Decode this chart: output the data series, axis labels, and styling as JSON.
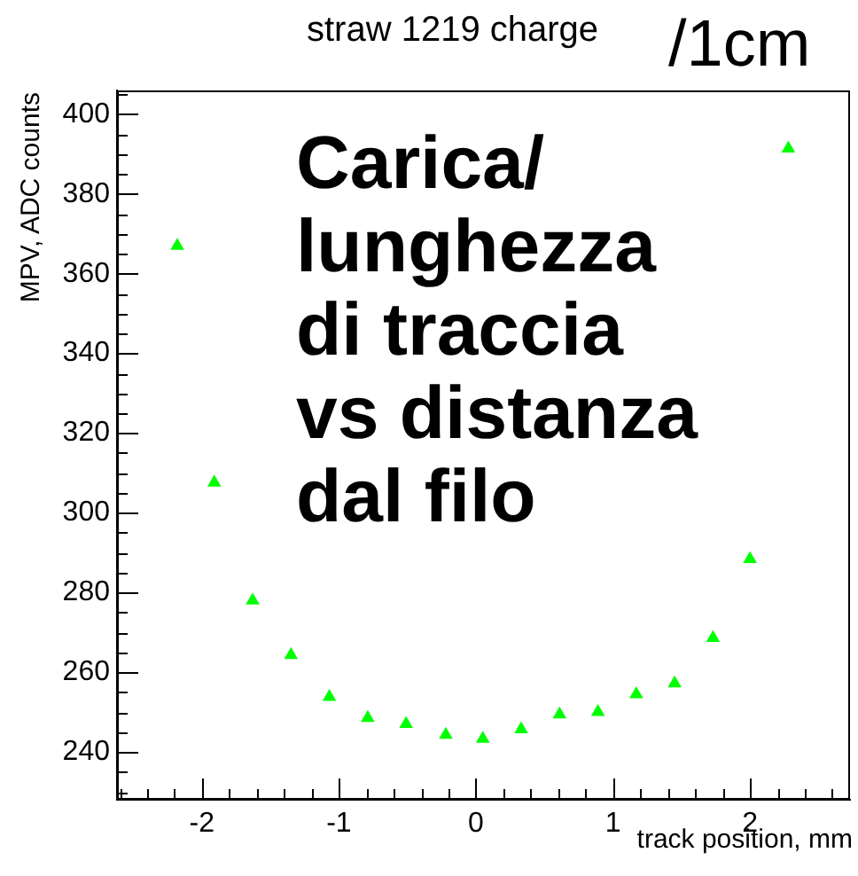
{
  "chart_data": {
    "type": "scatter",
    "title": "straw 1219 charge",
    "subtitle": "/1cm",
    "xlabel": "track position, mm",
    "ylabel": "MPV, ADC counts",
    "annotations": [
      "Carica/\nlunghezza\ndi traccia\nvs distanza\ndal filo"
    ],
    "x": [
      -2.18,
      -1.91,
      -1.63,
      -1.35,
      -1.07,
      -0.79,
      -0.51,
      -0.22,
      0.05,
      0.33,
      0.61,
      0.89,
      1.17,
      1.45,
      1.73,
      2.0,
      2.28
    ],
    "values": [
      367,
      307.6,
      278,
      264.3,
      253.8,
      248.5,
      247,
      244.3,
      243.3,
      245.7,
      249.4,
      250,
      254.5,
      257.2,
      268.6,
      288.4,
      391.4
    ],
    "color": "#00ff00",
    "marker": "triangle",
    "xlim": [
      -2.62,
      2.73
    ],
    "xticks": [
      {
        "value": -2.6,
        "label": null
      },
      {
        "value": -2.4,
        "label": null
      },
      {
        "value": -2.2,
        "label": null
      },
      -2,
      {
        "value": -1.8,
        "label": null
      },
      {
        "value": -1.6,
        "label": null
      },
      {
        "value": -1.4,
        "label": null
      },
      {
        "value": -1.2,
        "label": null
      },
      -1,
      {
        "value": -0.8,
        "label": null
      },
      {
        "value": -0.6,
        "label": null
      },
      {
        "value": -0.4,
        "label": null
      },
      {
        "value": -0.2,
        "label": null
      },
      0,
      {
        "value": 0.2,
        "label": null
      },
      {
        "value": 0.4,
        "label": null
      },
      {
        "value": 0.6,
        "label": null
      },
      {
        "value": 0.8,
        "label": null
      },
      1,
      {
        "value": 1.2,
        "label": null
      },
      {
        "value": 1.4,
        "label": null
      },
      {
        "value": 1.6,
        "label": null
      },
      {
        "value": 1.8,
        "label": null
      },
      2,
      {
        "value": 2.2,
        "label": null
      },
      {
        "value": 2.4,
        "label": null
      },
      {
        "value": 2.6,
        "label": null
      }
    ],
    "ylim": [
      228,
      406
    ],
    "yticks": [
      {
        "value": 230,
        "label": null
      },
      {
        "value": 235,
        "label": null
      },
      240,
      {
        "value": 245,
        "label": null
      },
      {
        "value": 250,
        "label": null
      },
      {
        "value": 255,
        "label": null
      },
      260,
      {
        "value": 265,
        "label": null
      },
      {
        "value": 270,
        "label": null
      },
      {
        "value": 275,
        "label": null
      },
      280,
      {
        "value": 285,
        "label": null
      },
      {
        "value": 290,
        "label": null
      },
      {
        "value": 295,
        "label": null
      },
      300,
      {
        "value": 305,
        "label": null
      },
      {
        "value": 310,
        "label": null
      },
      {
        "value": 315,
        "label": null
      },
      320,
      {
        "value": 325,
        "label": null
      },
      {
        "value": 330,
        "label": null
      },
      {
        "value": 335,
        "label": null
      },
      340,
      {
        "value": 345,
        "label": null
      },
      {
        "value": 350,
        "label": null
      },
      {
        "value": 355,
        "label": null
      },
      360,
      {
        "value": 365,
        "label": null
      },
      {
        "value": 370,
        "label": null
      },
      {
        "value": 375,
        "label": null
      },
      380,
      {
        "value": 385,
        "label": null
      },
      {
        "value": 390,
        "label": null
      },
      {
        "value": 395,
        "label": null
      },
      400,
      {
        "value": 405,
        "label": null
      }
    ]
  }
}
